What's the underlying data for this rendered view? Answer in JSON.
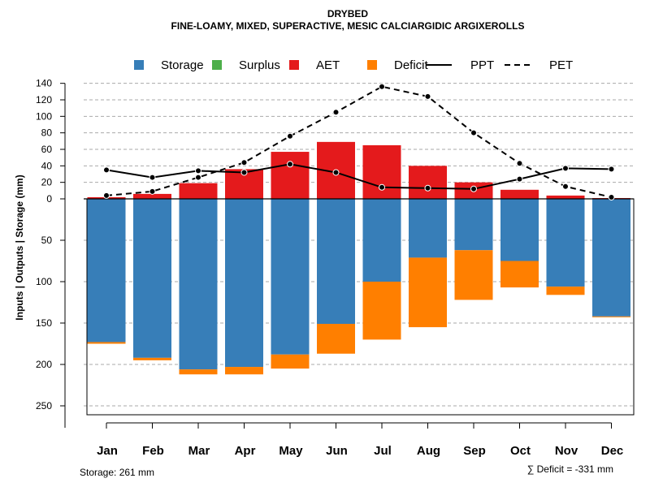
{
  "chart_data": {
    "type": "bar",
    "title": "DRYBED",
    "subtitle": "FINE-LOAMY, MIXED, SUPERACTIVE, MESIC CALCIARGIDIC ARGIXEROLLS",
    "ylabel": "Inputs | Outputs | Storage     (mm)",
    "categories": [
      "Jan",
      "Feb",
      "Mar",
      "Apr",
      "May",
      "Jun",
      "Jul",
      "Aug",
      "Sep",
      "Oct",
      "Nov",
      "Dec"
    ],
    "ylim_upper": [
      0,
      140
    ],
    "ylim_lower": [
      0,
      261
    ],
    "upper_ticks": [
      "140",
      "120",
      "100",
      "80",
      "60",
      "40",
      "20",
      "0"
    ],
    "upper_tick_values": [
      140,
      120,
      100,
      80,
      60,
      40,
      20,
      0
    ],
    "lower_ticks": [
      "50",
      "100",
      "150",
      "200",
      "250"
    ],
    "lower_tick_values": [
      50,
      100,
      150,
      200,
      250
    ],
    "legend": [
      {
        "label": "Storage",
        "color": "#377eb8",
        "kind": "box"
      },
      {
        "label": "Surplus",
        "color": "#4daf4a",
        "kind": "box"
      },
      {
        "label": "AET",
        "color": "#e41a1c",
        "kind": "box"
      },
      {
        "label": "Deficit",
        "color": "#ff7f00",
        "kind": "box"
      },
      {
        "label": "PPT",
        "color": "#000000",
        "kind": "solid"
      },
      {
        "label": "PET",
        "color": "#000000",
        "kind": "dashed"
      }
    ],
    "series": [
      {
        "name": "AET",
        "color": "#e41a1c",
        "values": [
          2,
          6,
          19,
          36,
          57,
          69,
          65,
          40,
          20,
          11,
          4,
          1
        ]
      },
      {
        "name": "Storage",
        "color": "#377eb8",
        "values": [
          173,
          192,
          206,
          203,
          188,
          151,
          100,
          71,
          62,
          75,
          106,
          142
        ]
      },
      {
        "name": "Deficit",
        "color": "#ff7f00",
        "values": [
          2,
          3,
          6,
          9,
          17,
          36,
          70,
          84,
          60,
          32,
          10,
          1
        ]
      },
      {
        "name": "Surplus",
        "color": "#4daf4a",
        "values": [
          0,
          0,
          0,
          0,
          0,
          0,
          0,
          0,
          0,
          0,
          0,
          0
        ]
      },
      {
        "name": "PPT",
        "color": "#000000",
        "values": [
          35,
          26,
          34,
          32,
          42,
          32,
          14,
          13,
          12,
          24,
          37,
          36
        ]
      },
      {
        "name": "PET",
        "color": "#000000",
        "values": [
          4,
          9,
          26,
          44,
          76,
          105,
          136,
          124,
          80,
          43,
          15,
          2
        ]
      }
    ],
    "storage_note": "Storage: 261 mm",
    "deficit_note": "∑ Deficit = -331 mm",
    "colors": {
      "grid": "#aaaaaa",
      "axis": "#000000",
      "marker_fill": "#000000",
      "marker_stroke": "#ffffff"
    }
  }
}
